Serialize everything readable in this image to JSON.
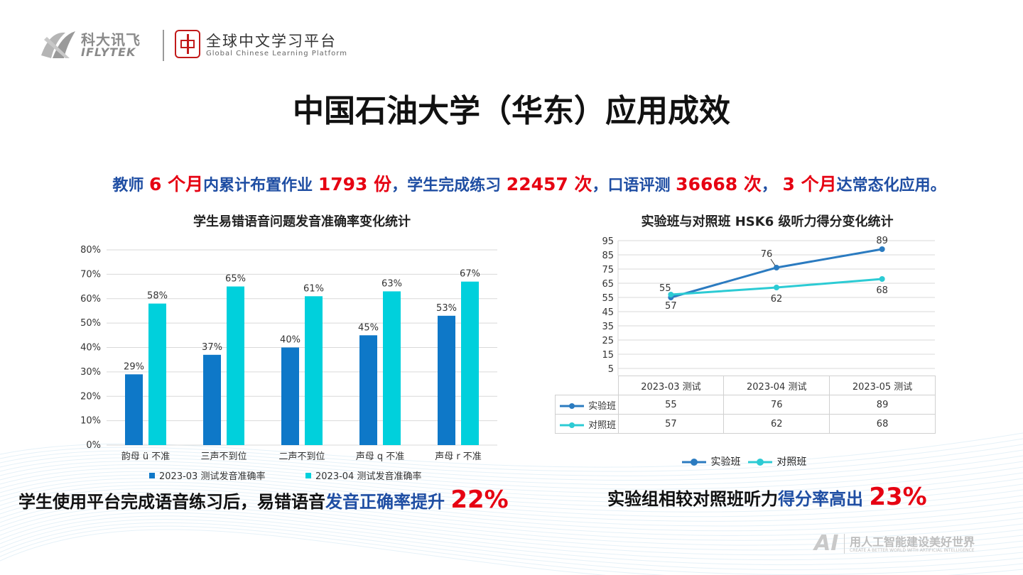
{
  "header": {
    "brand_cn": "科大讯飞",
    "brand_en": "IFLYTEK",
    "platform_cn": "全球中文学习平台",
    "platform_en": "Global Chinese Learning Platform"
  },
  "title": "中国石油大学（华东）应用成效",
  "summary": {
    "p1": "教师",
    "v1": "6 个月",
    "p2": "内累计布置作业",
    "v2": "1793 份",
    "p3": "，学生完成练习",
    "v3": "22457 次",
    "p4": "，口语评测",
    "v4": "36668 次",
    "p5": "，",
    "v5": "3 个月",
    "p6": "达常态化应用。"
  },
  "chart_data": [
    {
      "type": "bar",
      "title": "学生易错语音问题发音准确率变化统计",
      "categories": [
        "韵母 ü 不准",
        "三声不到位",
        "二声不到位",
        "声母 q 不准",
        "声母 r 不准"
      ],
      "series": [
        {
          "name": "2023-03 测试发音准确率",
          "values": [
            29,
            37,
            40,
            45,
            53
          ],
          "color": "#0e78c8"
        },
        {
          "name": "2023-04 测试发音准确率",
          "values": [
            58,
            65,
            61,
            63,
            67
          ],
          "color": "#00d0dc"
        }
      ],
      "value_labels": [
        [
          "29%",
          "37%",
          "40%",
          "45%",
          "53%"
        ],
        [
          "58%",
          "65%",
          "61%",
          "63%",
          "67%"
        ]
      ],
      "ylim": [
        0,
        80
      ],
      "yticks": [
        0,
        10,
        20,
        30,
        40,
        50,
        60,
        70,
        80
      ],
      "ytick_labels": [
        "0%",
        "10%",
        "20%",
        "30%",
        "40%",
        "50%",
        "60%",
        "70%",
        "80%"
      ],
      "grid": true,
      "legend": "bottom"
    },
    {
      "type": "line",
      "title": "实验班与对照班 HSK6 级听力得分变化统计",
      "categories": [
        "2023-03  测试",
        "2023-04  测试",
        "2023-05  测试"
      ],
      "series": [
        {
          "name": "实验班",
          "values": [
            55,
            76,
            89
          ],
          "color": "#2b7bc0"
        },
        {
          "name": "对照班",
          "values": [
            57,
            62,
            68
          ],
          "color": "#2ccbd4"
        }
      ],
      "ylim": [
        5,
        95
      ],
      "yticks": [
        5,
        15,
        25,
        35,
        45,
        55,
        65,
        75,
        85,
        95
      ],
      "grid": true,
      "legend": "bottom",
      "data_table": [
        [
          "55",
          "76",
          "89"
        ],
        [
          "57",
          "62",
          "68"
        ]
      ]
    }
  ],
  "bottom": {
    "left_p1": "学生使用平台完成语音练习后，易错语音",
    "left_hl": "发音正确率提升",
    "left_big": "22%",
    "right_p1": "实验组相较对照班听力",
    "right_hl": "得分率高出",
    "right_big": "23%"
  },
  "footer": {
    "ai_logo": "AI",
    "slogan_cn": "用人工智能建设美好世界",
    "slogan_en": "CREATE A BETTER WORLD WITH ARTIFICIAL INTELLIGENCE"
  },
  "colors": {
    "accent_blue": "#1f4ea3",
    "accent_red": "#e60012"
  }
}
